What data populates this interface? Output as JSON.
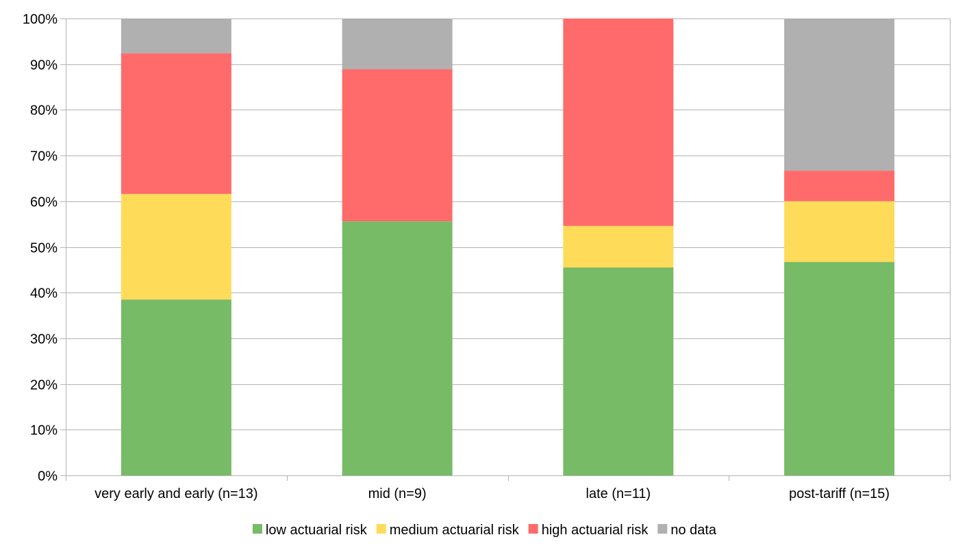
{
  "chart_data": {
    "type": "bar",
    "stacked": true,
    "percent_stacked": true,
    "title": "",
    "xlabel": "",
    "ylabel": "",
    "ylim": [
      0,
      100
    ],
    "y_ticks": [
      0,
      10,
      20,
      30,
      40,
      50,
      60,
      70,
      80,
      90,
      100
    ],
    "y_tick_labels": [
      "0%",
      "10%",
      "20%",
      "30%",
      "40%",
      "50%",
      "60%",
      "70%",
      "80%",
      "90%",
      "100%"
    ],
    "grid": true,
    "legend_position": "bottom",
    "categories": [
      "very early and early (n=13)",
      "mid (n=9)",
      "late (n=11)",
      "post-tariff (n=15)"
    ],
    "series": [
      {
        "name": "low actuarial risk",
        "color": "#77bb66",
        "values": [
          38.5,
          55.6,
          45.5,
          46.7
        ]
      },
      {
        "name": "medium actuarial risk",
        "color": "#ffdb5a",
        "values": [
          23.1,
          0,
          9.1,
          13.3
        ]
      },
      {
        "name": "high actuarial risk",
        "color": "#ff6b6b",
        "values": [
          30.8,
          33.3,
          45.5,
          6.7
        ]
      },
      {
        "name": "no data",
        "color": "#b0b0b0",
        "values": [
          7.7,
          11.1,
          0,
          33.3
        ]
      }
    ]
  }
}
